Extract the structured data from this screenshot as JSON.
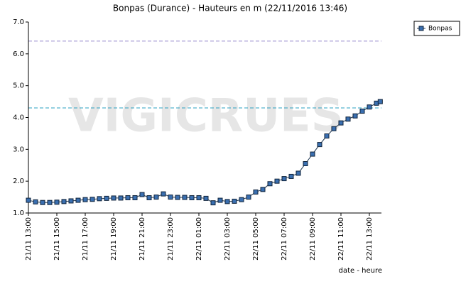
{
  "chart_data": {
    "type": "line",
    "title": "Bonpas (Durance) - Hauteurs en m (22/11/2016 13:46)",
    "x_label": "date - heure",
    "watermark": "VIGICRUES",
    "x": [
      "21/11 13:00",
      "21/11 13:30",
      "21/11 14:00",
      "21/11 14:30",
      "21/11 15:00",
      "21/11 15:30",
      "21/11 16:00",
      "21/11 16:30",
      "21/11 17:00",
      "21/11 17:30",
      "21/11 18:00",
      "21/11 18:30",
      "21/11 19:00",
      "21/11 19:30",
      "21/11 20:00",
      "21/11 20:30",
      "21/11 21:00",
      "21/11 21:30",
      "21/11 22:00",
      "21/11 22:30",
      "21/11 23:00",
      "21/11 23:30",
      "22/11 00:00",
      "22/11 00:30",
      "22/11 01:00",
      "22/11 01:30",
      "22/11 02:00",
      "22/11 02:30",
      "22/11 03:00",
      "22/11 03:30",
      "22/11 04:00",
      "22/11 04:30",
      "22/11 05:00",
      "22/11 05:30",
      "22/11 06:00",
      "22/11 06:30",
      "22/11 07:00",
      "22/11 07:30",
      "22/11 08:00",
      "22/11 08:30",
      "22/11 09:00",
      "22/11 09:30",
      "22/11 10:00",
      "22/11 10:30",
      "22/11 11:00",
      "22/11 11:30",
      "22/11 12:00",
      "22/11 12:30",
      "22/11 13:00",
      "22/11 13:30",
      "22/11 13:46"
    ],
    "series": [
      {
        "name": "Bonpas",
        "color": "#3a6fb0",
        "values": [
          1.4,
          1.35,
          1.33,
          1.33,
          1.34,
          1.36,
          1.38,
          1.4,
          1.42,
          1.43,
          1.45,
          1.46,
          1.47,
          1.47,
          1.48,
          1.48,
          1.58,
          1.48,
          1.5,
          1.6,
          1.5,
          1.49,
          1.49,
          1.48,
          1.48,
          1.46,
          1.32,
          1.4,
          1.36,
          1.37,
          1.42,
          1.5,
          1.66,
          1.74,
          1.92,
          2.0,
          2.08,
          2.15,
          2.25,
          2.55,
          2.85,
          3.15,
          3.42,
          3.65,
          3.83,
          3.95,
          4.05,
          4.2,
          4.33,
          4.45,
          4.5
        ]
      }
    ],
    "xlim": [
      "21/11 13:00",
      "22/11 13:51"
    ],
    "xticks": [
      "21/11 13:00",
      "21/11 15:00",
      "21/11 17:00",
      "21/11 19:00",
      "21/11 21:00",
      "21/11 23:00",
      "22/11 01:00",
      "22/11 03:00",
      "22/11 05:00",
      "22/11 07:00",
      "22/11 09:00",
      "22/11 11:00",
      "22/11 13:00"
    ],
    "ylim": [
      1,
      7
    ],
    "yticks": [
      {
        "value": 1,
        "label": "1.0"
      },
      {
        "value": 2,
        "label": "2.0"
      },
      {
        "value": 3,
        "label": "3.0"
      },
      {
        "value": 4,
        "label": "4.0"
      },
      {
        "value": 5,
        "label": "5.0"
      },
      {
        "value": 6,
        "label": "6.0"
      },
      {
        "value": 7,
        "label": "7.0"
      }
    ],
    "reference_lines": [
      {
        "value": 6.4,
        "color": "#9a8fd0"
      },
      {
        "value": 4.3,
        "color": "#2aa0c0"
      }
    ],
    "legend": "top-right"
  }
}
